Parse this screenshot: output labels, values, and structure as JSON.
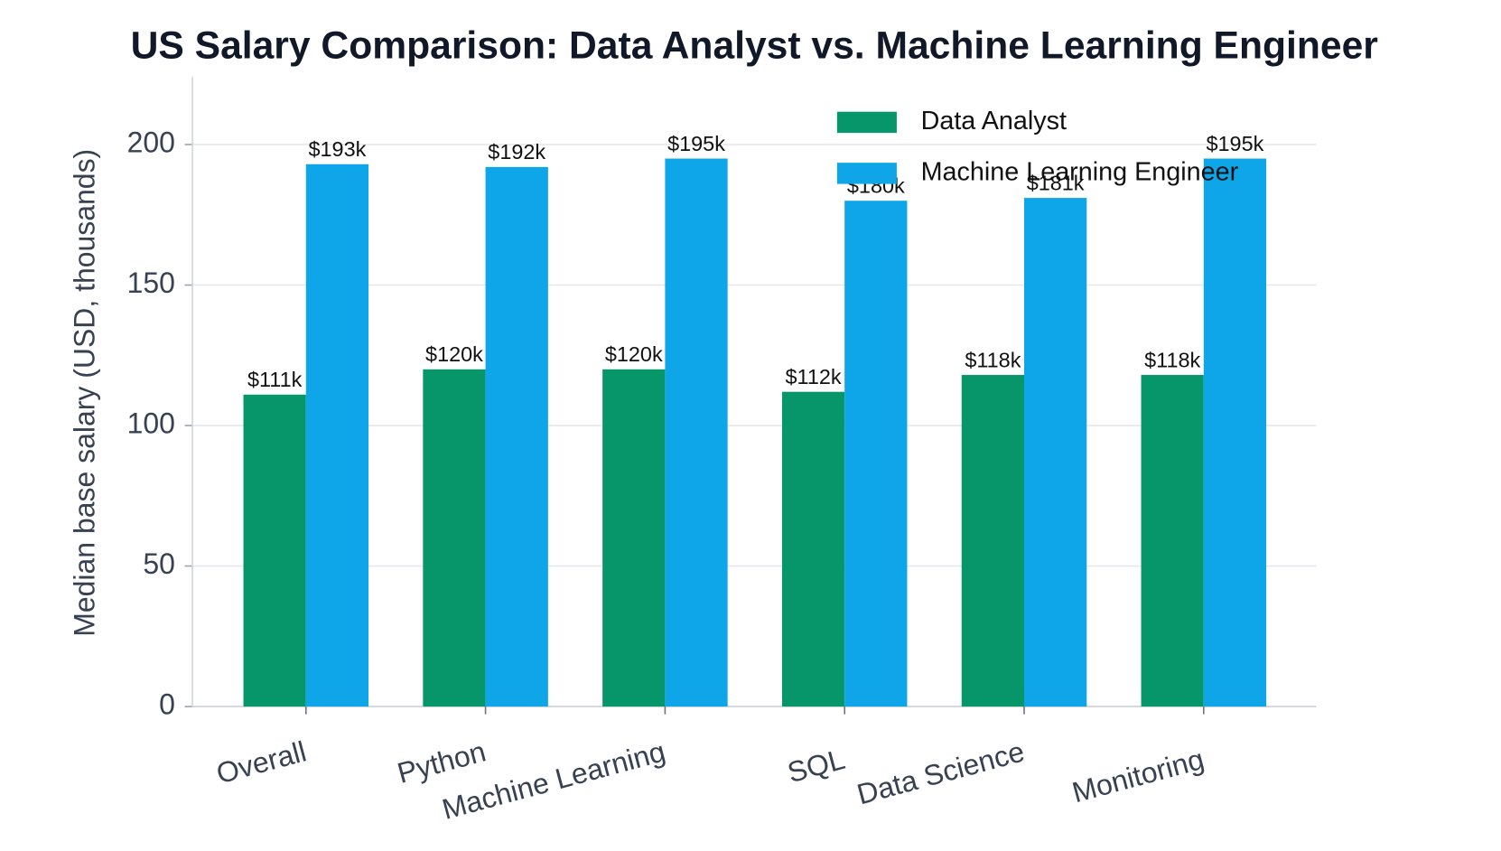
{
  "chart_data": {
    "type": "bar",
    "title": "US Salary Comparison: Data Analyst vs. Machine Learning Engineer",
    "y_label": "Median base salary (USD, thousands)",
    "categories": [
      "Overall",
      "Python",
      "Machine Learning",
      "SQL",
      "Data Science",
      "Monitoring"
    ],
    "series": [
      {
        "name": "Data Analyst",
        "color": "#079669",
        "values": [
          111,
          120,
          120,
          112,
          118,
          118
        ],
        "value_labels": [
          "$111k",
          "$120k",
          "$120k",
          "$112k",
          "$118k",
          "$118k"
        ]
      },
      {
        "name": "Machine Learning Engineer",
        "color": "#0ea5e9",
        "values": [
          193,
          192,
          195,
          180,
          181,
          195
        ],
        "value_labels": [
          "$193k",
          "$192k",
          "$195k",
          "$180k",
          "$181k",
          "$195k"
        ]
      }
    ],
    "ylim": [
      0,
      224
    ],
    "yticks": [
      0,
      50,
      100,
      150,
      200
    ],
    "grid": true,
    "legend": "upper right"
  }
}
